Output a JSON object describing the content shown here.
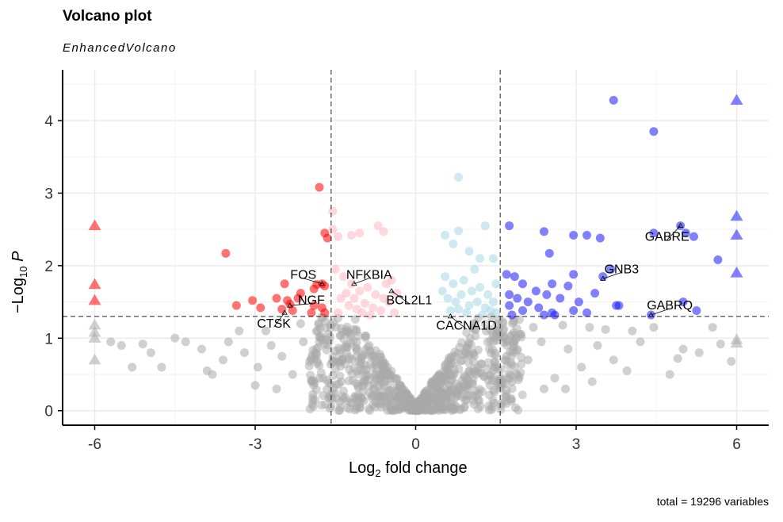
{
  "chart_data": {
    "type": "scatter",
    "title": "Volcano plot",
    "subtitle": "EnhancedVolcano",
    "xlabel_pre": "Log",
    "xlabel_sub": "2",
    "xlabel_post": " fold change",
    "ylabel_pre": "−Log",
    "ylabel_sub": "10",
    "ylabel_post": " P",
    "caption": "total = 19296 variables",
    "xlim": [
      -6.6,
      6.6
    ],
    "ylim": [
      -0.2,
      4.7
    ],
    "xticks": [
      -6,
      -3,
      0,
      3,
      6
    ],
    "xtick_labels": [
      "-6",
      "-3",
      "0",
      "3",
      "6"
    ],
    "yticks": [
      0,
      1,
      2,
      3,
      4
    ],
    "ytick_labels": [
      "0",
      "1",
      "2",
      "3",
      "4"
    ],
    "grid": true,
    "cutoffs": {
      "fc": [
        -1.58,
        1.58
      ],
      "p": 1.3
    },
    "colors": {
      "ns": "#aaaaaa",
      "down_both": "#ff0000",
      "down_p": "#ffb6c1",
      "up_p": "#a6d8e4",
      "up_both": "#1a1aff"
    },
    "series": [
      {
        "group": "down_both",
        "points": [
          [
            -1.8,
            3.08
          ],
          [
            -1.7,
            2.45
          ],
          [
            -1.65,
            2.38
          ],
          [
            -3.55,
            2.17
          ],
          [
            -2.45,
            1.75
          ],
          [
            -1.85,
            1.74
          ],
          [
            -1.75,
            1.75
          ],
          [
            -1.7,
            1.72
          ],
          [
            -1.9,
            1.68
          ],
          [
            -2.6,
            1.55
          ],
          [
            -2.4,
            1.52
          ],
          [
            -2.2,
            1.55
          ],
          [
            -3.05,
            1.52
          ],
          [
            -3.35,
            1.45
          ],
          [
            -2.9,
            1.42
          ],
          [
            -2.5,
            1.4
          ],
          [
            -2.3,
            1.38
          ],
          [
            -1.9,
            1.45
          ],
          [
            -1.75,
            1.42
          ],
          [
            -1.7,
            1.35
          ],
          [
            -2.15,
            1.62
          ],
          [
            -2.35,
            1.47
          ],
          [
            -1.95,
            1.35
          ]
        ]
      },
      {
        "group": "down_p",
        "points": [
          [
            -1.55,
            2.75
          ],
          [
            -1.55,
            2.5
          ],
          [
            -1.45,
            2.4
          ],
          [
            -1.2,
            2.42
          ],
          [
            -1.05,
            2.45
          ],
          [
            -0.7,
            2.55
          ],
          [
            -0.6,
            2.47
          ],
          [
            -1.5,
            1.95
          ],
          [
            -1.35,
            1.85
          ],
          [
            -1.2,
            1.75
          ],
          [
            -1.05,
            1.65
          ],
          [
            -0.9,
            1.7
          ],
          [
            -0.75,
            1.6
          ],
          [
            -0.6,
            1.55
          ],
          [
            -0.45,
            1.8
          ],
          [
            -0.5,
            1.5
          ],
          [
            -0.35,
            1.62
          ],
          [
            -1.4,
            1.55
          ],
          [
            -1.25,
            1.45
          ],
          [
            -1.1,
            1.4
          ],
          [
            -0.95,
            1.48
          ],
          [
            -0.8,
            1.42
          ],
          [
            -0.65,
            1.38
          ],
          [
            -0.4,
            1.35
          ],
          [
            -1.45,
            1.35
          ],
          [
            -1.3,
            1.62
          ],
          [
            -0.85,
            1.32
          ],
          [
            -0.55,
            1.75
          ],
          [
            -1.15,
            1.55
          ],
          [
            -1.0,
            1.35
          ]
        ]
      },
      {
        "group": "up_p",
        "points": [
          [
            0.8,
            3.22
          ],
          [
            0.55,
            2.42
          ],
          [
            0.8,
            2.48
          ],
          [
            1.3,
            2.55
          ],
          [
            0.7,
            2.3
          ],
          [
            1.0,
            2.2
          ],
          [
            1.2,
            2.1
          ],
          [
            1.45,
            2.1
          ],
          [
            0.55,
            1.85
          ],
          [
            0.7,
            1.75
          ],
          [
            0.9,
            1.8
          ],
          [
            1.05,
            1.65
          ],
          [
            1.2,
            1.7
          ],
          [
            1.35,
            1.6
          ],
          [
            1.5,
            1.75
          ],
          [
            0.6,
            1.55
          ],
          [
            0.75,
            1.5
          ],
          [
            0.85,
            1.6
          ],
          [
            1.0,
            1.45
          ],
          [
            1.15,
            1.5
          ],
          [
            1.3,
            1.42
          ],
          [
            1.45,
            1.5
          ],
          [
            0.65,
            1.38
          ],
          [
            0.95,
            1.35
          ],
          [
            1.25,
            1.32
          ],
          [
            1.4,
            1.38
          ],
          [
            0.5,
            1.65
          ],
          [
            1.1,
            1.95
          ],
          [
            0.8,
            1.4
          ],
          [
            1.5,
            1.35
          ]
        ]
      },
      {
        "group": "up_both",
        "points": [
          [
            3.7,
            4.28
          ],
          [
            4.45,
            3.85
          ],
          [
            1.75,
            2.55
          ],
          [
            2.4,
            2.47
          ],
          [
            2.95,
            2.42
          ],
          [
            3.2,
            2.42
          ],
          [
            3.45,
            2.38
          ],
          [
            4.45,
            2.45
          ],
          [
            4.95,
            2.55
          ],
          [
            5.05,
            2.45
          ],
          [
            5.2,
            2.4
          ],
          [
            2.5,
            2.17
          ],
          [
            5.65,
            2.08
          ],
          [
            1.7,
            1.88
          ],
          [
            1.85,
            1.85
          ],
          [
            2.0,
            1.75
          ],
          [
            2.25,
            1.65
          ],
          [
            2.55,
            1.75
          ],
          [
            2.85,
            1.72
          ],
          [
            2.95,
            1.88
          ],
          [
            3.5,
            1.85
          ],
          [
            3.65,
            1.95
          ],
          [
            1.75,
            1.6
          ],
          [
            1.9,
            1.55
          ],
          [
            2.1,
            1.5
          ],
          [
            2.45,
            1.6
          ],
          [
            2.7,
            1.55
          ],
          [
            3.05,
            1.5
          ],
          [
            3.35,
            1.62
          ],
          [
            3.8,
            1.45
          ],
          [
            1.75,
            1.45
          ],
          [
            2.0,
            1.38
          ],
          [
            2.3,
            1.42
          ],
          [
            2.55,
            1.35
          ],
          [
            2.95,
            1.38
          ],
          [
            3.2,
            1.35
          ],
          [
            3.75,
            1.45
          ],
          [
            4.4,
            1.32
          ],
          [
            5.0,
            1.5
          ],
          [
            5.25,
            1.38
          ],
          [
            2.4,
            1.32
          ],
          [
            1.8,
            1.32
          ],
          [
            2.6,
            1.32
          ]
        ]
      },
      {
        "group": "ns",
        "points": [
          [
            -5.7,
            0.95
          ],
          [
            -5.5,
            0.9
          ],
          [
            -4.95,
            0.8
          ],
          [
            -4.75,
            0.6
          ],
          [
            -4.0,
            0.85
          ],
          [
            -3.8,
            0.5
          ],
          [
            -3.5,
            0.95
          ],
          [
            -3.2,
            0.8
          ],
          [
            -2.95,
            0.6
          ],
          [
            -2.7,
            0.9
          ],
          [
            -2.5,
            0.75
          ],
          [
            -2.3,
            0.5
          ],
          [
            -2.1,
            0.95
          ],
          [
            -1.95,
            0.7
          ],
          [
            -1.8,
            0.45
          ],
          [
            -4.3,
            0.95
          ],
          [
            -3.9,
            0.55
          ],
          [
            -3.6,
            0.7
          ],
          [
            -3.0,
            0.35
          ],
          [
            -2.6,
            0.3
          ],
          [
            -5.3,
            0.6
          ],
          [
            -5.1,
            0.92
          ],
          [
            -4.5,
            1.0
          ],
          [
            -2.8,
            1.1
          ],
          [
            -3.3,
            1.1
          ],
          [
            -2.15,
            1.2
          ],
          [
            5.7,
            0.92
          ],
          [
            5.55,
            1.15
          ],
          [
            5.3,
            0.8
          ],
          [
            4.75,
            0.5
          ],
          [
            4.2,
            0.95
          ],
          [
            3.7,
            0.7
          ],
          [
            3.4,
            0.9
          ],
          [
            3.1,
            0.6
          ],
          [
            2.85,
            0.85
          ],
          [
            2.6,
            0.45
          ],
          [
            2.35,
            0.95
          ],
          [
            2.1,
            0.7
          ],
          [
            1.95,
            1.05
          ],
          [
            4.45,
            1.15
          ],
          [
            4.05,
            1.1
          ],
          [
            3.55,
            1.12
          ],
          [
            3.25,
            1.15
          ],
          [
            2.75,
            1.18
          ],
          [
            2.2,
            1.15
          ],
          [
            5.0,
            0.85
          ],
          [
            4.9,
            0.72
          ],
          [
            3.95,
            0.55
          ],
          [
            3.3,
            0.4
          ],
          [
            2.8,
            0.3
          ],
          [
            2.4,
            0.3
          ],
          [
            1.8,
            0.4
          ],
          [
            1.7,
            0.75
          ],
          [
            5.9,
            0.68
          ]
        ]
      }
    ],
    "triangles": [
      {
        "group": "down_both",
        "x": -6,
        "ys": [
          2.55,
          1.74,
          1.52
        ]
      },
      {
        "group": "ns",
        "x": -6,
        "ys": [
          1.18,
          1.08,
          1.0,
          0.7
        ]
      },
      {
        "group": "up_both",
        "x": 6,
        "ys": [
          4.28,
          2.68,
          2.42,
          1.9
        ]
      },
      {
        "group": "ns",
        "x": 6,
        "ys": [
          0.98,
          0.93
        ]
      }
    ],
    "labels": [
      {
        "text": "FOS",
        "x": -1.75,
        "y": 1.75,
        "lx": -2.1,
        "ly": 1.87
      },
      {
        "text": "NFKBIA",
        "x": -1.15,
        "y": 1.75,
        "lx": -0.87,
        "ly": 1.87
      },
      {
        "text": "BCL2L1",
        "x": -0.45,
        "y": 1.65,
        "lx": -0.12,
        "ly": 1.52
      },
      {
        "text": "NGF",
        "x": -2.35,
        "y": 1.45,
        "lx": -1.95,
        "ly": 1.52
      },
      {
        "text": "CTSK",
        "x": -2.45,
        "y": 1.35,
        "lx": -2.65,
        "ly": 1.2
      },
      {
        "text": "CACNA1D",
        "x": 0.65,
        "y": 1.3,
        "lx": 0.95,
        "ly": 1.17
      },
      {
        "text": "GNB3",
        "x": 3.5,
        "y": 1.82,
        "lx": 3.85,
        "ly": 1.95
      },
      {
        "text": "GABRE",
        "x": 4.95,
        "y": 2.55,
        "lx": 4.7,
        "ly": 2.4
      },
      {
        "text": "GABRQ",
        "x": 4.4,
        "y": 1.32,
        "lx": 4.75,
        "ly": 1.45
      }
    ]
  }
}
